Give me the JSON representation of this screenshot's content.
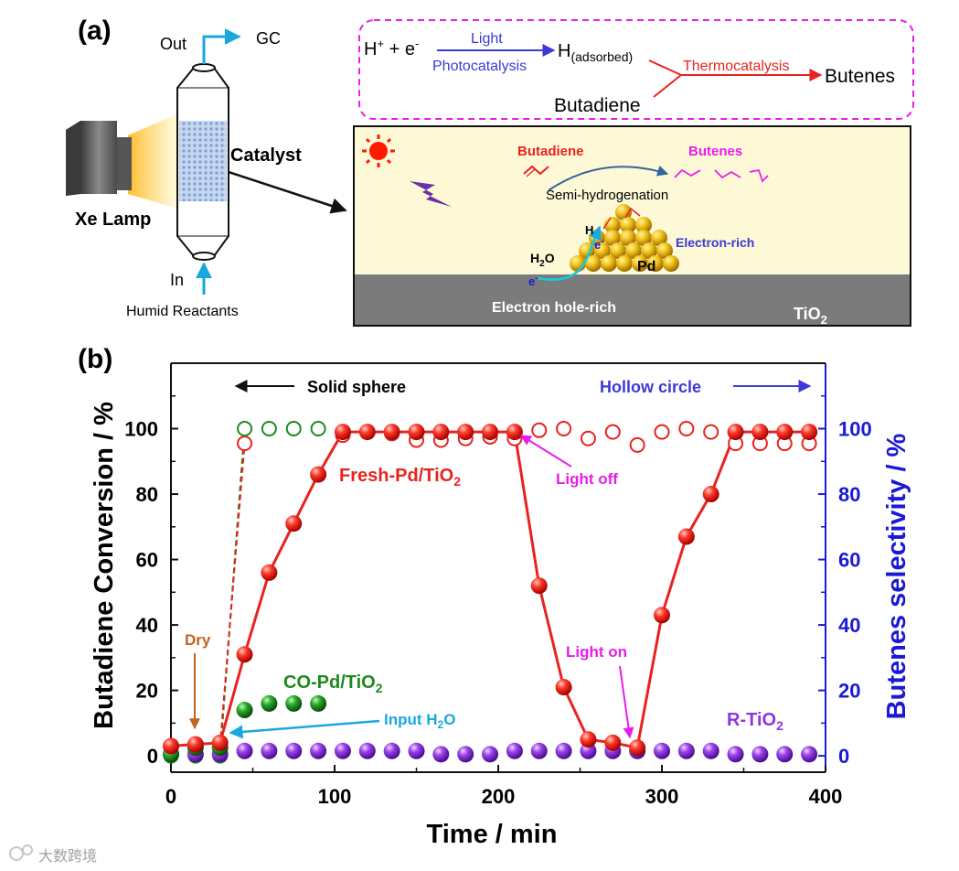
{
  "panel_a": {
    "label": "(a)",
    "reactor": {
      "out_label": "Out",
      "gc_label": "GC",
      "catalyst_label": "Catalyst",
      "in_label": "In",
      "humid_label": "Humid Reactants",
      "lamp_label": "Xe Lamp"
    },
    "scheme": {
      "h_plus": "H",
      "sup_plus": "+",
      "plus_e": " + e",
      "sup_minus": "-",
      "light": "Light",
      "photocatalysis": "Photocatalysis",
      "h_ads_main": "H",
      "h_ads_sub": "(adsorbed)",
      "thermocatalysis": "Thermocatalysis",
      "butenes": "Butenes",
      "butadiene": "Butadiene"
    },
    "illustration": {
      "butadiene": "Butadiene",
      "butenes": "Butenes",
      "semi": "Semi-hydrogenation",
      "h": "H",
      "e": "e",
      "e_sup": "-",
      "h2o_h": "H",
      "h2o_2": "2",
      "h2o_o": "O",
      "electron_rich": "Electron-rich",
      "pd": "Pd",
      "hole_rich": "Electron hole-rich",
      "tio2_main": "TiO",
      "tio2_sub": "2"
    }
  },
  "panel_b": {
    "label": "(b)",
    "solid_label": "Solid sphere",
    "hollow_label": "Hollow circle",
    "annotations": {
      "fresh": "Fresh-Pd/TiO",
      "fresh_sub": "2",
      "co": "CO-Pd/TiO",
      "co_sub": "2",
      "rtio2": "R-TiO",
      "rtio2_sub": "2",
      "dry": "Dry",
      "input_h2o": "Input H",
      "input_sub": "2",
      "input_o": "O",
      "light_off": "Light off",
      "light_on": "Light on"
    }
  },
  "watermark": "大数跨境",
  "colors": {
    "fresh": "#e8231f",
    "co": "#1e8a1e",
    "rtio2": "#8e35e0",
    "blue_axis": "#1a1ad6",
    "magenta": "#e81ee8",
    "cyan": "#18a8e0",
    "dry": "#c0651e"
  },
  "chart_data": {
    "type": "scatter",
    "xlabel": "Time / min",
    "ylabel": "Butadiene Conversion / %",
    "y2label": "Butenes selectivity / %",
    "xlim": [
      0,
      400
    ],
    "ylim": [
      -5,
      120
    ],
    "y2lim": [
      -5,
      120
    ],
    "xticks": [
      0,
      100,
      200,
      300,
      400
    ],
    "yticks": [
      0,
      20,
      40,
      60,
      80,
      100
    ],
    "y2ticks": [
      0,
      20,
      40,
      60,
      80,
      100
    ],
    "series": [
      {
        "name": "Fresh-Pd/TiO2 conversion",
        "marker": "solid",
        "axis": "left",
        "x": [
          0,
          15,
          30,
          45,
          60,
          75,
          90,
          105,
          120,
          135,
          150,
          165,
          180,
          195,
          210,
          225,
          240,
          255,
          270,
          285,
          300,
          315,
          330,
          345,
          360,
          375,
          390
        ],
        "y": [
          3,
          3.5,
          4,
          31,
          56,
          71,
          86,
          99,
          99,
          99,
          99,
          99,
          99,
          99,
          99,
          52,
          21,
          5,
          4,
          2.5,
          43,
          67,
          80,
          99,
          99,
          99,
          99
        ]
      },
      {
        "name": "Fresh-Pd/TiO2 selectivity",
        "marker": "hollow",
        "axis": "right",
        "x": [
          30,
          45,
          105,
          120,
          135,
          150,
          165,
          180,
          195,
          210,
          225,
          240,
          255,
          270,
          285,
          300,
          315,
          330,
          345,
          360,
          375,
          390
        ],
        "y": [
          3,
          95.5,
          98,
          99,
          98.5,
          96.5,
          96.5,
          97,
          97.5,
          97,
          99.5,
          100,
          97,
          99,
          95,
          99,
          100,
          99,
          95.5,
          95.5,
          95.5,
          95.5
        ]
      },
      {
        "name": "CO-Pd/TiO2 conversion",
        "marker": "solid",
        "axis": "left",
        "x": [
          0,
          15,
          30,
          45,
          60,
          75,
          90
        ],
        "y": [
          0.5,
          2.5,
          2.5,
          14,
          16,
          16,
          16
        ]
      },
      {
        "name": "CO-Pd/TiO2 selectivity",
        "marker": "hollow",
        "axis": "right",
        "x": [
          0,
          15,
          30,
          45,
          60,
          75,
          90
        ],
        "y": [
          0,
          0,
          0,
          100,
          100,
          100,
          100
        ]
      },
      {
        "name": "R-TiO2 conversion",
        "marker": "solid",
        "axis": "left",
        "x": [
          0,
          15,
          30,
          45,
          60,
          75,
          90,
          105,
          120,
          135,
          150,
          165,
          180,
          195,
          210,
          225,
          240,
          255,
          270,
          285,
          300,
          315,
          330,
          345,
          360,
          375,
          390
        ],
        "y": [
          0.5,
          0.5,
          0.5,
          1.5,
          1.5,
          1.5,
          1.5,
          1.5,
          1.5,
          1.5,
          1.5,
          0.5,
          0.5,
          0.5,
          1.5,
          1.5,
          1.5,
          1.5,
          1.5,
          1.5,
          1.5,
          1.5,
          1.5,
          0.5,
          0.5,
          0.5,
          0.5
        ]
      }
    ]
  }
}
